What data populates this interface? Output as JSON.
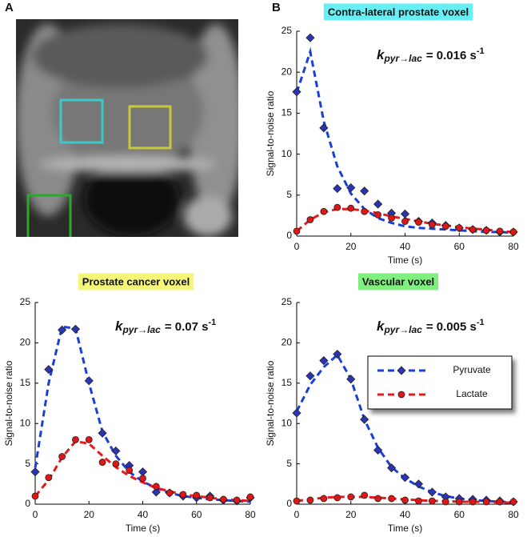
{
  "panel_labels": [
    "A",
    "B"
  ],
  "chart_data": [
    {
      "type": "line",
      "title": "Contra-lateral prostate voxel",
      "title_color": "#66f0f5",
      "annotation": {
        "symbol": "k",
        "subscript": "pyr→lac",
        "value": "= 0.016 s",
        "exponent": "-1"
      },
      "x_label": "Time (s)",
      "y_label": "Signal-to-noise ratio",
      "x": [
        0,
        5,
        10,
        15,
        20,
        25,
        30,
        35,
        40,
        45,
        50,
        55,
        60,
        65,
        70,
        75,
        80
      ],
      "xlim": [
        0,
        80
      ],
      "xticks": [
        0,
        20,
        40,
        60,
        80
      ],
      "ylim": [
        0,
        25
      ],
      "yticks": [
        0,
        5,
        10,
        15,
        20,
        25
      ],
      "series": [
        {
          "color": "#1a3fd8",
          "marker": "diamond",
          "marker_color": "#2a35b5",
          "values": [
            17.6,
            24.2,
            13.2,
            5.8,
            5.9,
            5.5,
            3.9,
            2.8,
            2.7,
            1.8,
            1.6,
            1.3,
            1.0,
            0.8,
            0.7,
            0.5,
            0.5
          ],
          "fit": [
            17.5,
            22.5,
            14,
            8.5,
            5.2,
            3.3,
            2.2,
            1.6,
            1.2,
            1.0,
            0.9,
            0.8,
            0.7,
            0.6,
            0.5,
            0.5,
            0.4
          ]
        },
        {
          "color": "#e8191b",
          "marker": "circle",
          "marker_color": "#e01515",
          "values": [
            0.6,
            2.0,
            3.0,
            3.5,
            3.4,
            3.0,
            2.6,
            2.2,
            1.8,
            1.7,
            1.4,
            1.2,
            1.0,
            0.8,
            0.7,
            0.6,
            0.5
          ],
          "fit": [
            0.6,
            2.0,
            2.9,
            3.3,
            3.3,
            3.1,
            2.8,
            2.4,
            2.1,
            1.8,
            1.5,
            1.3,
            1.1,
            0.9,
            0.8,
            0.6,
            0.5
          ]
        }
      ]
    },
    {
      "type": "line",
      "title": "Prostate cancer voxel",
      "title_color": "#f5f57a",
      "annotation": {
        "symbol": "k",
        "subscript": "pyr→lac",
        "value": "= 0.07 s",
        "exponent": "-1"
      },
      "x_label": "Time (s)",
      "y_label": "Signal-to-noise ratio",
      "x": [
        0,
        5,
        10,
        15,
        20,
        25,
        30,
        35,
        40,
        45,
        50,
        55,
        60,
        65,
        70,
        75,
        80
      ],
      "xlim": [
        0,
        80
      ],
      "xticks": [
        0,
        20,
        40,
        60,
        80
      ],
      "ylim": [
        0,
        25
      ],
      "yticks": [
        0,
        5,
        10,
        15,
        20,
        25
      ],
      "series": [
        {
          "color": "#1a3fd8",
          "marker": "diamond",
          "marker_color": "#2a35b5",
          "values": [
            4.0,
            16.7,
            21.6,
            21.7,
            15.3,
            8.8,
            6.6,
            4.8,
            4.0,
            1.5,
            1.4,
            1.0,
            0.8,
            1.0,
            0.5,
            0.4,
            0.8
          ],
          "fit": [
            4.5,
            15,
            22,
            21.8,
            15,
            9,
            6,
            4,
            2.8,
            2,
            1.4,
            1.0,
            0.8,
            0.6,
            0.5,
            0.4,
            0.3
          ]
        },
        {
          "color": "#e8191b",
          "marker": "circle",
          "marker_color": "#e01515",
          "values": [
            1.0,
            3.3,
            5.9,
            8.0,
            8.0,
            5.2,
            5.0,
            4.2,
            3.2,
            2.2,
            1.4,
            1.2,
            1.1,
            0.8,
            0.6,
            0.5,
            0.9
          ],
          "fit": [
            1,
            3,
            5.8,
            7.8,
            7.5,
            6,
            4.6,
            3.5,
            2.7,
            2,
            1.6,
            1.2,
            1,
            0.8,
            0.6,
            0.5,
            0.4
          ]
        }
      ]
    },
    {
      "type": "line",
      "title": "Vascular voxel",
      "title_color": "#7ff07f",
      "annotation": {
        "symbol": "k",
        "subscript": "pyr→lac",
        "value": "= 0.005 s",
        "exponent": "-1"
      },
      "x_label": "Time (s)",
      "y_label": "Signal-to-noise ratio",
      "x": [
        0,
        5,
        10,
        15,
        20,
        25,
        30,
        35,
        40,
        45,
        50,
        55,
        60,
        65,
        70,
        75,
        80
      ],
      "xlim": [
        0,
        80
      ],
      "xticks": [
        0,
        20,
        40,
        60,
        80
      ],
      "ylim": [
        0,
        25
      ],
      "yticks": [
        0,
        5,
        10,
        15,
        20,
        25
      ],
      "legend": "upper right",
      "series": [
        {
          "name": "Pyruvate",
          "color": "#1a3fd8",
          "marker": "diamond",
          "marker_color": "#2a35b5",
          "values": [
            11.3,
            15.9,
            17.8,
            18.6,
            15.5,
            10.5,
            6.7,
            4.5,
            3.3,
            2.5,
            1.5,
            0.9,
            0.7,
            0.6,
            0.5,
            0.4,
            0.3
          ],
          "fit": [
            11.5,
            14.8,
            17,
            18.5,
            15.5,
            10.5,
            7,
            4.6,
            3.2,
            2.2,
            1.5,
            1.0,
            0.7,
            0.5,
            0.4,
            0.3,
            0.2
          ]
        },
        {
          "name": "Lactate",
          "color": "#e8191b",
          "marker": "circle",
          "marker_color": "#e01515",
          "values": [
            0.4,
            0.5,
            0.7,
            0.8,
            0.9,
            1.1,
            0.7,
            0.7,
            0.5,
            0.4,
            0.4,
            0.3,
            0.3,
            0.3,
            0.3,
            0.3,
            0.3
          ],
          "fit": [
            0.4,
            0.6,
            0.8,
            0.9,
            0.9,
            0.9,
            0.8,
            0.7,
            0.6,
            0.5,
            0.4,
            0.4,
            0.3,
            0.3,
            0.3,
            0.2,
            0.2
          ]
        }
      ]
    }
  ]
}
